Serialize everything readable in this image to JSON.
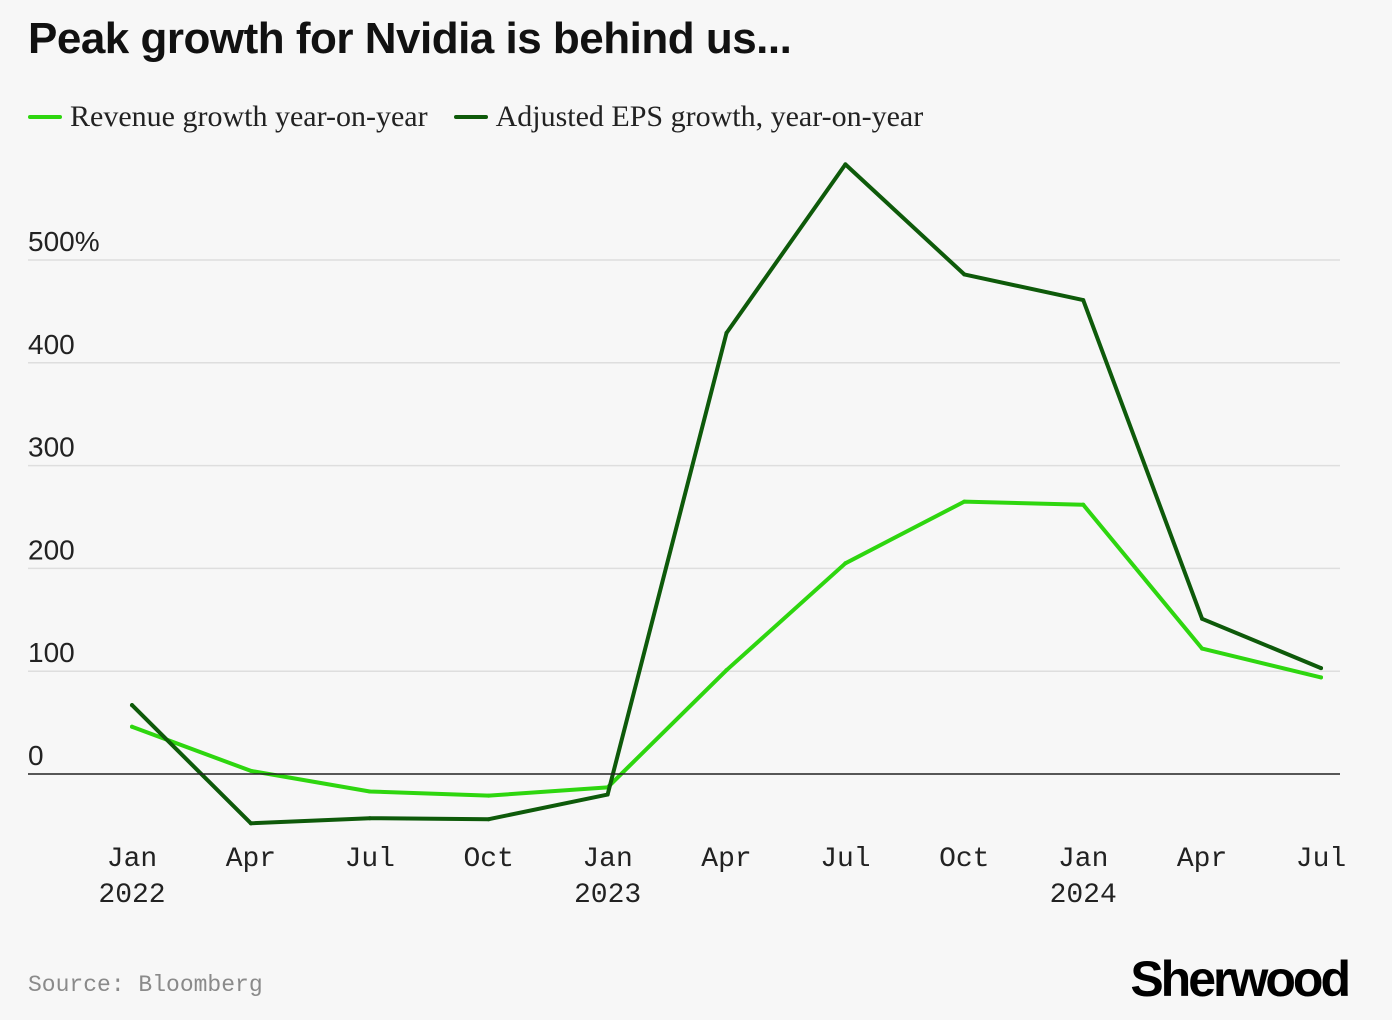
{
  "chart_data": {
    "type": "line",
    "title": "Peak growth for Nvidia is behind us...",
    "xlabel": "",
    "ylabel": "",
    "x": [
      "Jan 2022",
      "Apr 2022",
      "Jul 2022",
      "Oct 2022",
      "Jan 2023",
      "Apr 2023",
      "Jul 2023",
      "Oct 2023",
      "Jan 2024",
      "Apr 2024",
      "Jul 2024"
    ],
    "x_tick_labels": [
      {
        "line1": "Jan",
        "line2": "2022"
      },
      {
        "line1": "Apr",
        "line2": ""
      },
      {
        "line1": "Jul",
        "line2": ""
      },
      {
        "line1": "Oct",
        "line2": ""
      },
      {
        "line1": "Jan",
        "line2": "2023"
      },
      {
        "line1": "Apr",
        "line2": ""
      },
      {
        "line1": "Jul",
        "line2": ""
      },
      {
        "line1": "Oct",
        "line2": ""
      },
      {
        "line1": "Jan",
        "line2": "2024"
      },
      {
        "line1": "Apr",
        "line2": ""
      },
      {
        "line1": "Jul",
        "line2": ""
      }
    ],
    "y_ticks": [
      0,
      100,
      200,
      300,
      400,
      500
    ],
    "y_tick_labels": [
      "0",
      "100",
      "200",
      "300",
      "400",
      "500%"
    ],
    "ylim": [
      -60,
      600
    ],
    "grid": true,
    "legend_position": "top-left",
    "series": [
      {
        "name": "Revenue growth year-on-year",
        "color": "#2ed60f",
        "values": [
          46,
          3,
          -17,
          -21,
          -13,
          101,
          205,
          265,
          262,
          122,
          94
        ]
      },
      {
        "name": "Adjusted EPS growth, year-on-year",
        "color": "#0e5a0a",
        "values": [
          67,
          -48,
          -43,
          -44,
          -20,
          429,
          593,
          486,
          461,
          151,
          103
        ]
      }
    ]
  },
  "footer": {
    "source": "Source: Bloomberg",
    "brand": "Sherwood"
  }
}
